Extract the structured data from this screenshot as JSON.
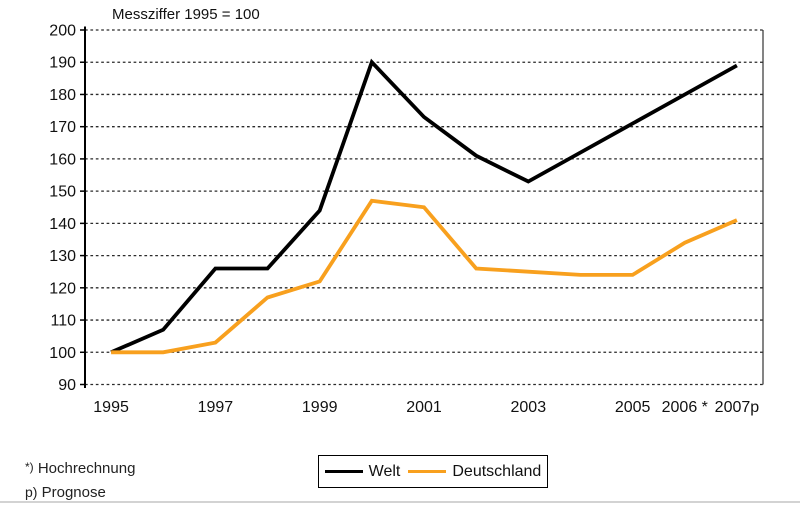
{
  "title": "Messziffer 1995 = 100",
  "legend": {
    "items": [
      {
        "label": "Welt",
        "color": "#000000"
      },
      {
        "label": "Deutschland",
        "color": "#F8A01E"
      }
    ]
  },
  "footnotes": [
    {
      "symbol": "*)",
      "label": "Hochrechnung"
    },
    {
      "symbol": "p)",
      "label": "Prognose"
    }
  ],
  "chart_data": {
    "type": "line",
    "title": "Messziffer 1995 = 100",
    "x": [
      1995,
      1996,
      1997,
      1998,
      1999,
      2000,
      2001,
      2002,
      2003,
      2004,
      2005,
      2006,
      2007
    ],
    "series": [
      {
        "name": "Welt",
        "color": "#000000",
        "values": [
          100,
          107,
          126,
          126,
          144,
          190,
          173,
          161,
          153,
          162,
          171,
          180,
          189
        ]
      },
      {
        "name": "Deutschland",
        "color": "#F8A01E",
        "values": [
          100,
          100,
          103,
          117,
          122,
          147,
          145,
          126,
          125,
          124,
          124,
          134,
          141
        ]
      }
    ],
    "xlabel": "",
    "ylabel": "",
    "ylim": [
      90,
      200
    ],
    "ytick_step": 10,
    "xticks": [
      {
        "label": "1995",
        "x": 1995
      },
      {
        "label": "1997",
        "x": 1997
      },
      {
        "label": "1999",
        "x": 1999
      },
      {
        "label": "2001",
        "x": 2001
      },
      {
        "label": "2003",
        "x": 2003
      },
      {
        "label": "2005",
        "x": 2005
      },
      {
        "label": "2006 *",
        "x": 2006
      },
      {
        "label": "2007p",
        "x": 2007
      }
    ],
    "grid": "horizontal-dashed",
    "legend_position": "bottom-center"
  }
}
